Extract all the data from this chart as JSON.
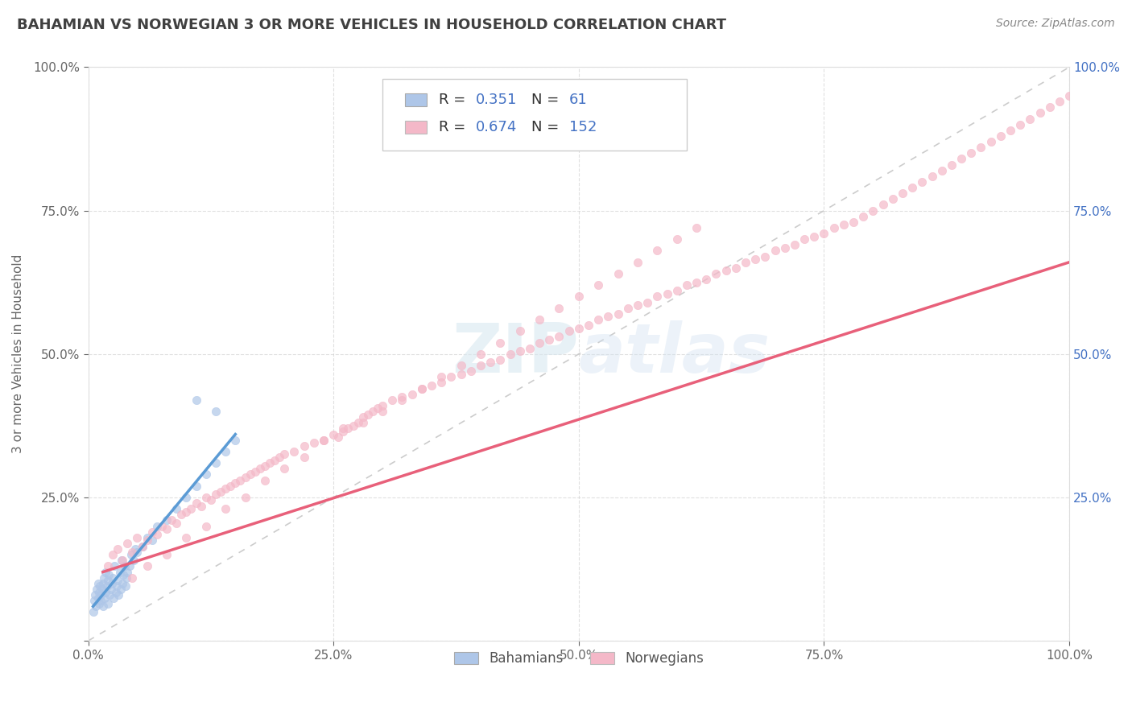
{
  "title": "BAHAMIAN VS NORWEGIAN 3 OR MORE VEHICLES IN HOUSEHOLD CORRELATION CHART",
  "source": "Source: ZipAtlas.com",
  "ylabel": "3 or more Vehicles in Household",
  "xlim": [
    0.0,
    1.0
  ],
  "ylim": [
    0.0,
    1.0
  ],
  "xtick_labels": [
    "0.0%",
    "25.0%",
    "50.0%",
    "75.0%",
    "100.0%"
  ],
  "xtick_vals": [
    0.0,
    0.25,
    0.5,
    0.75,
    1.0
  ],
  "ytick_labels": [
    "",
    "25.0%",
    "50.0%",
    "75.0%",
    "100.0%"
  ],
  "ytick_vals": [
    0.0,
    0.25,
    0.5,
    0.75,
    1.0
  ],
  "ytick_right_labels": [
    "25.0%",
    "50.0%",
    "75.0%",
    "100.0%"
  ],
  "ytick_right_vals": [
    0.25,
    0.5,
    0.75,
    1.0
  ],
  "background_color": "#ffffff",
  "grid_color": "#cccccc",
  "bahamian_color": "#aec6e8",
  "norwegian_color": "#f4b8c8",
  "bahamian_line_color": "#5b9bd5",
  "norwegian_line_color": "#e8607a",
  "diagonal_color": "#cccccc",
  "title_color": "#404040",
  "source_color": "#888888",
  "axis_label_color": "#666666",
  "tick_color": "#666666",
  "tick_color_right": "#4472c4",
  "bah_x": [
    0.005,
    0.006,
    0.007,
    0.008,
    0.009,
    0.01,
    0.01,
    0.011,
    0.011,
    0.012,
    0.013,
    0.013,
    0.014,
    0.015,
    0.015,
    0.016,
    0.017,
    0.018,
    0.018,
    0.019,
    0.02,
    0.02,
    0.021,
    0.022,
    0.023,
    0.024,
    0.025,
    0.026,
    0.027,
    0.028,
    0.029,
    0.03,
    0.031,
    0.032,
    0.033,
    0.034,
    0.035,
    0.036,
    0.037,
    0.038,
    0.039,
    0.04,
    0.042,
    0.044,
    0.046,
    0.048,
    0.05,
    0.055,
    0.06,
    0.065,
    0.07,
    0.08,
    0.09,
    0.1,
    0.11,
    0.12,
    0.13,
    0.14,
    0.15,
    0.11,
    0.13
  ],
  "bah_y": [
    0.05,
    0.07,
    0.08,
    0.06,
    0.09,
    0.075,
    0.1,
    0.065,
    0.085,
    0.095,
    0.07,
    0.08,
    0.09,
    0.06,
    0.1,
    0.11,
    0.075,
    0.085,
    0.12,
    0.095,
    0.065,
    0.105,
    0.115,
    0.08,
    0.09,
    0.1,
    0.11,
    0.075,
    0.13,
    0.085,
    0.095,
    0.105,
    0.08,
    0.12,
    0.09,
    0.14,
    0.1,
    0.115,
    0.13,
    0.095,
    0.11,
    0.12,
    0.13,
    0.15,
    0.14,
    0.16,
    0.155,
    0.165,
    0.18,
    0.175,
    0.2,
    0.21,
    0.23,
    0.25,
    0.27,
    0.29,
    0.31,
    0.33,
    0.35,
    0.42,
    0.4
  ],
  "nor_x": [
    0.02,
    0.025,
    0.03,
    0.035,
    0.04,
    0.045,
    0.05,
    0.055,
    0.06,
    0.065,
    0.07,
    0.075,
    0.08,
    0.085,
    0.09,
    0.095,
    0.1,
    0.105,
    0.11,
    0.115,
    0.12,
    0.125,
    0.13,
    0.135,
    0.14,
    0.145,
    0.15,
    0.155,
    0.16,
    0.165,
    0.17,
    0.175,
    0.18,
    0.185,
    0.19,
    0.195,
    0.2,
    0.21,
    0.22,
    0.23,
    0.24,
    0.25,
    0.255,
    0.26,
    0.265,
    0.27,
    0.275,
    0.28,
    0.285,
    0.29,
    0.295,
    0.3,
    0.31,
    0.32,
    0.33,
    0.34,
    0.35,
    0.36,
    0.37,
    0.38,
    0.39,
    0.4,
    0.41,
    0.42,
    0.43,
    0.44,
    0.45,
    0.46,
    0.47,
    0.48,
    0.49,
    0.5,
    0.51,
    0.52,
    0.53,
    0.54,
    0.55,
    0.56,
    0.57,
    0.58,
    0.59,
    0.6,
    0.61,
    0.62,
    0.63,
    0.64,
    0.65,
    0.66,
    0.67,
    0.68,
    0.69,
    0.7,
    0.71,
    0.72,
    0.73,
    0.74,
    0.75,
    0.76,
    0.77,
    0.78,
    0.79,
    0.8,
    0.81,
    0.82,
    0.83,
    0.84,
    0.85,
    0.86,
    0.87,
    0.88,
    0.89,
    0.9,
    0.91,
    0.92,
    0.93,
    0.94,
    0.95,
    0.96,
    0.97,
    0.98,
    0.99,
    1.0,
    0.045,
    0.06,
    0.08,
    0.1,
    0.12,
    0.14,
    0.16,
    0.18,
    0.2,
    0.22,
    0.24,
    0.26,
    0.28,
    0.3,
    0.32,
    0.34,
    0.36,
    0.38,
    0.4,
    0.42,
    0.44,
    0.46,
    0.48,
    0.5,
    0.52,
    0.54,
    0.56,
    0.58,
    0.6,
    0.62
  ],
  "nor_y": [
    0.13,
    0.15,
    0.16,
    0.14,
    0.17,
    0.155,
    0.18,
    0.165,
    0.175,
    0.19,
    0.185,
    0.2,
    0.195,
    0.21,
    0.205,
    0.22,
    0.225,
    0.23,
    0.24,
    0.235,
    0.25,
    0.245,
    0.255,
    0.26,
    0.265,
    0.27,
    0.275,
    0.28,
    0.285,
    0.29,
    0.295,
    0.3,
    0.305,
    0.31,
    0.315,
    0.32,
    0.325,
    0.33,
    0.34,
    0.345,
    0.35,
    0.36,
    0.355,
    0.365,
    0.37,
    0.375,
    0.38,
    0.39,
    0.395,
    0.4,
    0.405,
    0.41,
    0.42,
    0.425,
    0.43,
    0.44,
    0.445,
    0.45,
    0.46,
    0.465,
    0.47,
    0.48,
    0.485,
    0.49,
    0.5,
    0.505,
    0.51,
    0.52,
    0.525,
    0.53,
    0.54,
    0.545,
    0.55,
    0.56,
    0.565,
    0.57,
    0.58,
    0.585,
    0.59,
    0.6,
    0.605,
    0.61,
    0.62,
    0.625,
    0.63,
    0.64,
    0.645,
    0.65,
    0.66,
    0.665,
    0.67,
    0.68,
    0.685,
    0.69,
    0.7,
    0.705,
    0.71,
    0.72,
    0.725,
    0.73,
    0.74,
    0.75,
    0.76,
    0.77,
    0.78,
    0.79,
    0.8,
    0.81,
    0.82,
    0.83,
    0.84,
    0.85,
    0.86,
    0.87,
    0.88,
    0.89,
    0.9,
    0.91,
    0.92,
    0.93,
    0.94,
    0.95,
    0.11,
    0.13,
    0.15,
    0.18,
    0.2,
    0.23,
    0.25,
    0.28,
    0.3,
    0.32,
    0.35,
    0.37,
    0.38,
    0.4,
    0.42,
    0.44,
    0.46,
    0.48,
    0.5,
    0.52,
    0.54,
    0.56,
    0.58,
    0.6,
    0.62,
    0.64,
    0.66,
    0.68,
    0.7,
    0.72
  ],
  "bah_line_x": [
    0.005,
    0.15
  ],
  "bah_line_y": [
    0.06,
    0.36
  ],
  "nor_line_x": [
    0.015,
    1.0
  ],
  "nor_line_y": [
    0.12,
    0.66
  ]
}
